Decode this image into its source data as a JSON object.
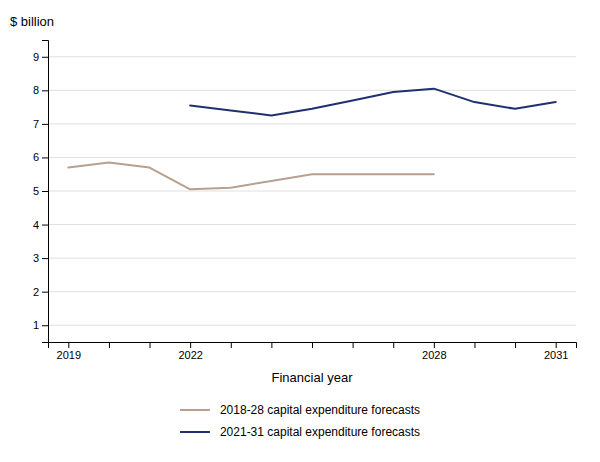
{
  "chart_data": {
    "type": "line",
    "xlabel": "Financial year",
    "ylabel": "$ billion",
    "series": [
      {
        "name": "2018-28 capital expenditure forecasts",
        "color": "#b8a090",
        "x": [
          2019,
          2020,
          2021,
          2022,
          2023,
          2024,
          2025,
          2026,
          2027,
          2028
        ],
        "values": [
          5.7,
          5.85,
          5.7,
          5.05,
          5.1,
          5.3,
          5.5,
          5.5,
          5.5,
          5.5
        ]
      },
      {
        "name": "2021-31 capital expenditure forecasts",
        "color": "#1f3070",
        "x": [
          2022,
          2023,
          2024,
          2025,
          2026,
          2027,
          2028,
          2029,
          2030,
          2031
        ],
        "values": [
          7.55,
          7.4,
          7.25,
          7.45,
          7.7,
          7.95,
          8.05,
          7.65,
          7.45,
          7.65
        ]
      }
    ],
    "xlim": [
      2018.5,
      2031.5
    ],
    "xticks": [
      2019,
      {
        "value": 2020,
        "label": null
      },
      {
        "value": 2021,
        "label": null
      },
      2022,
      {
        "value": 2023,
        "label": null
      },
      {
        "value": 2024,
        "label": null
      },
      {
        "value": 2025,
        "label": null
      },
      {
        "value": 2026,
        "label": null
      },
      {
        "value": 2027,
        "label": null
      },
      2028,
      {
        "value": 2029,
        "label": null
      },
      {
        "value": 2030,
        "label": null
      },
      2031
    ],
    "ylim": [
      0.5,
      9.5
    ],
    "yticks": [
      1,
      2,
      3,
      4,
      5,
      6,
      7,
      8,
      9
    ],
    "grid": true,
    "legend": "bottom"
  }
}
